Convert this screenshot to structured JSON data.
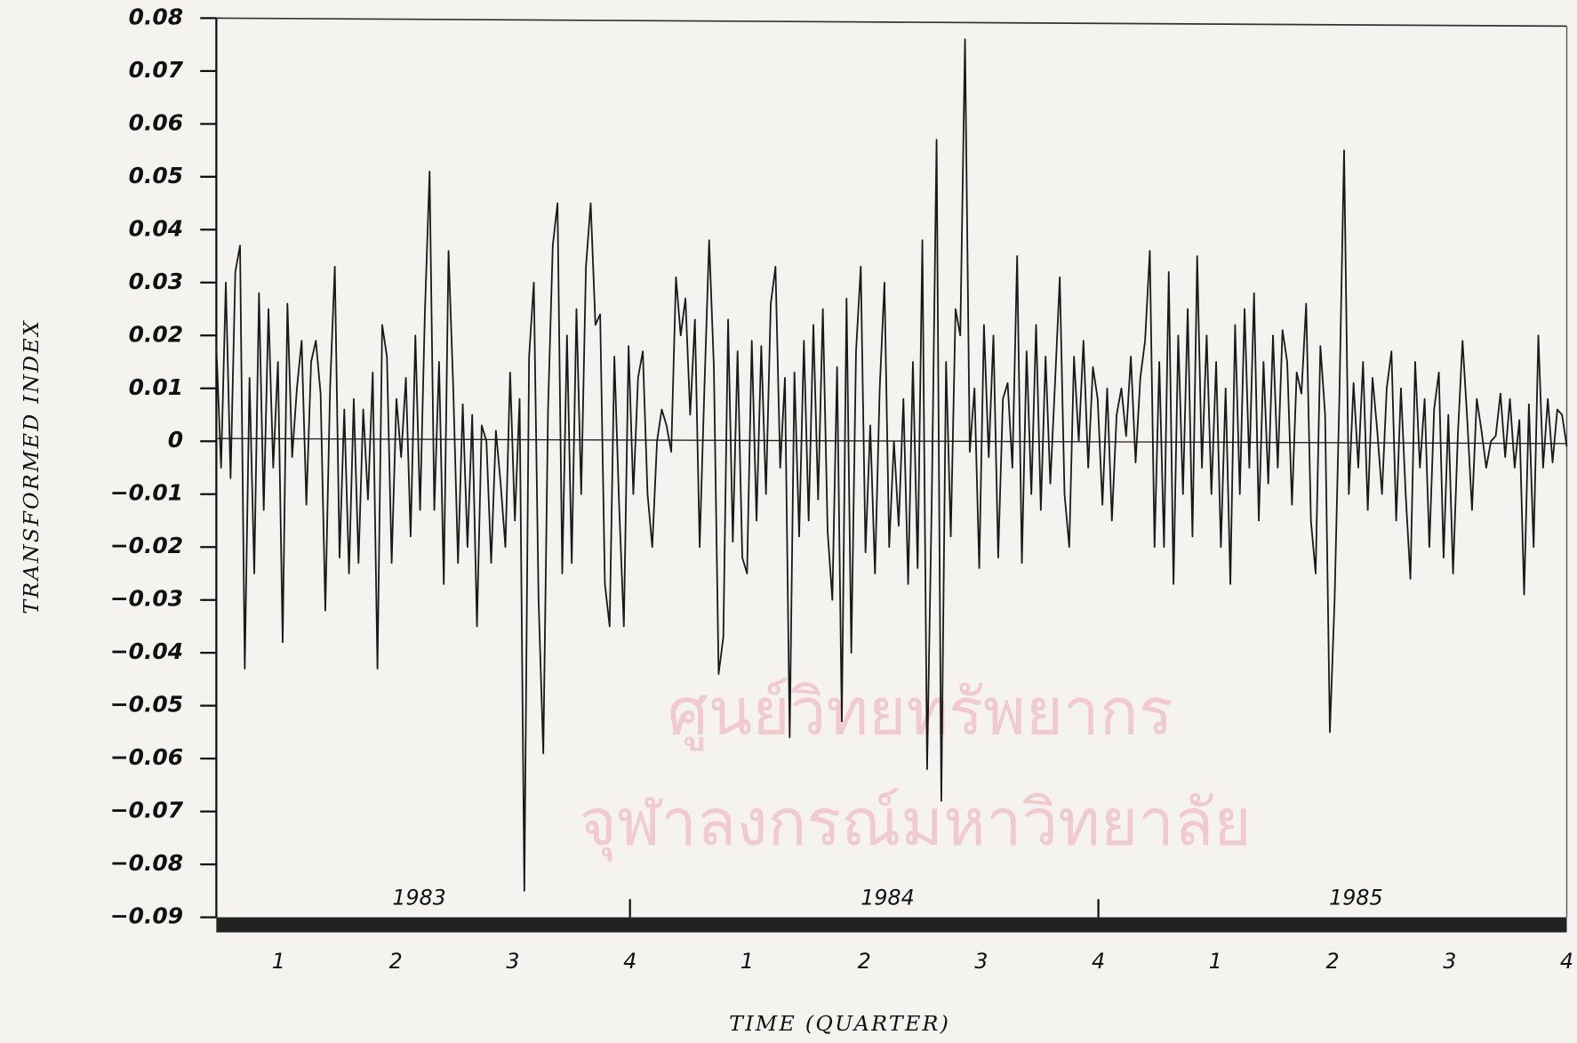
{
  "chart_data": {
    "type": "line",
    "ylabel": "TRANSFORMED INDEX",
    "xlabel": "TIME (QUARTER)",
    "years": [
      "1983",
      "1984",
      "1985"
    ],
    "quarters": [
      "1",
      "2",
      "3",
      "4",
      "1",
      "2",
      "3",
      "4",
      "1",
      "2",
      "3",
      "4"
    ],
    "watermark": [
      "ศูนย์วิทยทรัพยากร",
      "จุฬาลงกรณ์มหาวิทยาลัย"
    ],
    "color": "#1a1a1a",
    "ylim": [
      -0.09,
      0.08
    ],
    "yticks": [
      0.08,
      0.07,
      0.06,
      0.05,
      0.04,
      0.03,
      0.02,
      0.01,
      0,
      {
        "value": -0.01,
        "label": "−0.01"
      },
      {
        "value": -0.02,
        "label": "−0.02"
      },
      {
        "value": -0.03,
        "label": "−0.03"
      },
      {
        "value": -0.04,
        "label": "−0.04"
      },
      {
        "value": -0.05,
        "label": "−0.05"
      },
      {
        "value": -0.06,
        "label": "−0.06"
      },
      {
        "value": -0.07,
        "label": "−0.07"
      },
      {
        "value": -0.08,
        "label": "−0.08"
      },
      {
        "value": -0.09,
        "label": "−0.09"
      }
    ],
    "values": [
      0.018,
      -0.005,
      0.03,
      -0.007,
      0.032,
      0.037,
      -0.043,
      0.012,
      -0.025,
      0.028,
      -0.013,
      0.025,
      -0.005,
      0.015,
      -0.038,
      0.026,
      -0.003,
      0.01,
      0.019,
      -0.012,
      0.015,
      0.019,
      0.009,
      -0.032,
      0.01,
      0.033,
      -0.022,
      0.006,
      -0.025,
      0.008,
      -0.023,
      0.006,
      -0.011,
      0.013,
      -0.043,
      0.022,
      0.016,
      -0.023,
      0.008,
      -0.003,
      0.012,
      -0.018,
      0.02,
      -0.013,
      0.024,
      0.051,
      -0.013,
      0.015,
      -0.027,
      0.036,
      0.01,
      -0.023,
      0.007,
      -0.02,
      0.005,
      -0.035,
      0.003,
      0.0,
      -0.023,
      0.002,
      -0.008,
      -0.02,
      0.013,
      -0.015,
      0.008,
      -0.085,
      0.016,
      0.03,
      -0.03,
      -0.059,
      0.006,
      0.037,
      0.045,
      -0.025,
      0.02,
      -0.023,
      0.025,
      -0.01,
      0.033,
      0.045,
      0.022,
      0.024,
      -0.027,
      -0.035,
      0.016,
      -0.012,
      -0.035,
      0.018,
      -0.01,
      0.012,
      0.017,
      -0.01,
      -0.02,
      0.0,
      0.006,
      0.003,
      -0.002,
      0.031,
      0.02,
      0.027,
      0.005,
      0.023,
      -0.02,
      0.01,
      0.038,
      0.014,
      -0.044,
      -0.037,
      0.023,
      -0.019,
      0.017,
      -0.022,
      -0.025,
      0.019,
      -0.015,
      0.018,
      -0.01,
      0.026,
      0.033,
      -0.005,
      0.012,
      -0.056,
      0.013,
      -0.018,
      0.019,
      -0.015,
      0.022,
      -0.011,
      0.025,
      -0.017,
      -0.03,
      0.014,
      -0.053,
      0.027,
      -0.04,
      0.017,
      0.033,
      -0.021,
      0.003,
      -0.025,
      0.01,
      0.03,
      -0.02,
      0.0,
      -0.016,
      0.008,
      -0.027,
      0.015,
      -0.024,
      0.038,
      -0.062,
      -0.01,
      0.057,
      -0.068,
      0.015,
      -0.018,
      0.025,
      0.02,
      0.076,
      -0.002,
      0.01,
      -0.024,
      0.022,
      -0.003,
      0.02,
      -0.022,
      0.008,
      0.011,
      -0.005,
      0.035,
      -0.023,
      0.017,
      -0.01,
      0.022,
      -0.013,
      0.016,
      -0.008,
      0.011,
      0.031,
      -0.01,
      -0.02,
      0.016,
      0.0,
      0.019,
      -0.005,
      0.014,
      0.008,
      -0.012,
      0.01,
      -0.015,
      0.005,
      0.01,
      0.001,
      0.016,
      -0.004,
      0.012,
      0.019,
      0.036,
      -0.02,
      0.015,
      -0.02,
      0.032,
      -0.027,
      0.02,
      -0.01,
      0.025,
      -0.018,
      0.035,
      -0.005,
      0.02,
      -0.01,
      0.015,
      -0.02,
      0.01,
      -0.027,
      0.022,
      -0.01,
      0.025,
      -0.005,
      0.028,
      -0.015,
      0.015,
      -0.008,
      0.02,
      -0.005,
      0.021,
      0.015,
      -0.012,
      0.013,
      0.009,
      0.026,
      -0.015,
      -0.025,
      0.018,
      0.005,
      -0.055,
      -0.03,
      0.008,
      0.055,
      -0.01,
      0.011,
      -0.005,
      0.015,
      -0.013,
      0.012,
      0.002,
      -0.01,
      0.01,
      0.017,
      -0.015,
      0.01,
      -0.01,
      -0.026,
      0.015,
      -0.005,
      0.008,
      -0.02,
      0.006,
      0.013,
      -0.022,
      0.005,
      -0.025,
      0.001,
      0.019,
      0.004,
      -0.013,
      0.008,
      0.002,
      -0.005,
      0.0,
      0.001,
      0.009,
      -0.003,
      0.008,
      -0.005,
      0.004,
      -0.029,
      0.007,
      -0.02,
      0.02,
      -0.005,
      0.008,
      -0.004,
      0.006,
      0.005,
      -0.001
    ]
  }
}
